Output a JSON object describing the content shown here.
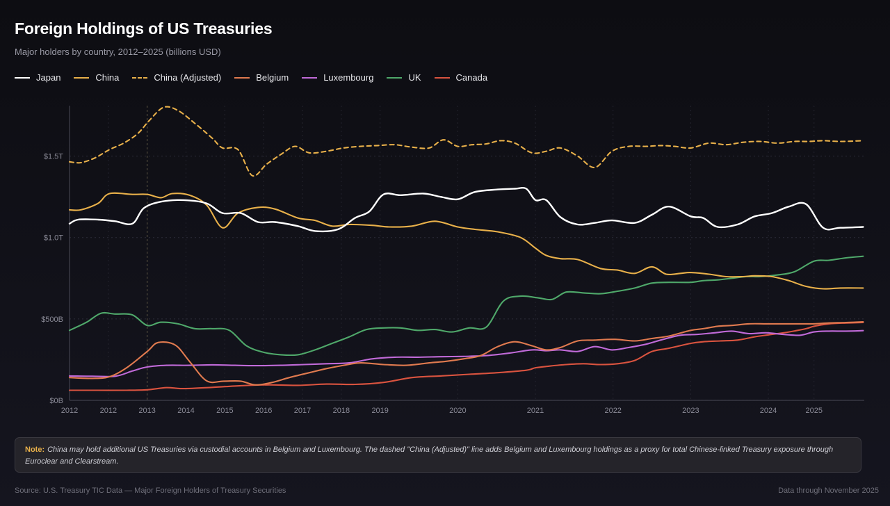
{
  "header": {
    "title": "Foreign Holdings of US Treasuries",
    "subtitle": "Major holders by country, 2012–2025 (billions USD)"
  },
  "note": {
    "label": "Note:",
    "text": "China may hold additional US Treasuries via custodial accounts in Belgium and Luxembourg. The dashed \"China (Adjusted)\" line adds Belgium and Luxembourg holdings as a proxy for total Chinese-linked Treasury exposure through Euroclear and Clearstream."
  },
  "footer": {
    "source": "Source: U.S. Treasury TIC Data — Major Foreign Holders of Treasury Securities",
    "through": "Data through November 2025"
  },
  "chart_data": {
    "type": "line",
    "x_range": [
      2012.0,
      2025.92
    ],
    "ylim": [
      0,
      1810
    ],
    "grid": true,
    "legend_position": "top-left",
    "y_ticks": [
      {
        "value": 0,
        "label": "$0B"
      },
      {
        "value": 500,
        "label": "$500B"
      },
      {
        "value": 1000,
        "label": "$1.0T"
      },
      {
        "value": 1500,
        "label": "$1.5T"
      }
    ],
    "x_ticks": [
      {
        "value": 2012.0,
        "label": "2012"
      },
      {
        "value": 2012.68,
        "label": "2012"
      },
      {
        "value": 2013.36,
        "label": "2013"
      },
      {
        "value": 2014.04,
        "label": "2014"
      },
      {
        "value": 2014.72,
        "label": "2015"
      },
      {
        "value": 2015.4,
        "label": "2016"
      },
      {
        "value": 2016.08,
        "label": "2017"
      },
      {
        "value": 2016.76,
        "label": "2018"
      },
      {
        "value": 2017.44,
        "label": "2019"
      },
      {
        "value": 2018.8,
        "label": "2020"
      },
      {
        "value": 2020.16,
        "label": "2021"
      },
      {
        "value": 2021.52,
        "label": "2022"
      },
      {
        "value": 2022.88,
        "label": "2023"
      },
      {
        "value": 2024.24,
        "label": "2024"
      },
      {
        "value": 2025.04,
        "label": "2025"
      }
    ],
    "vline_x": 2013.36,
    "series": [
      {
        "name": "Japan",
        "color": "#ffffff",
        "dashed": false,
        "x": [
          2012.0,
          2012.15,
          2012.5,
          2012.8,
          2013.1,
          2013.3,
          2013.6,
          2014.0,
          2014.4,
          2014.68,
          2015.0,
          2015.3,
          2015.6,
          2016.0,
          2016.3,
          2016.7,
          2017.0,
          2017.25,
          2017.5,
          2017.8,
          2018.2,
          2018.5,
          2018.8,
          2019.1,
          2019.5,
          2019.8,
          2020.0,
          2020.16,
          2020.35,
          2020.6,
          2020.9,
          2021.2,
          2021.5,
          2021.9,
          2022.2,
          2022.5,
          2022.88,
          2023.1,
          2023.35,
          2023.7,
          2024.0,
          2024.3,
          2024.6,
          2024.9,
          2025.2,
          2025.5,
          2025.9
        ],
        "y": [
          1085,
          1110,
          1110,
          1100,
          1085,
          1180,
          1220,
          1230,
          1210,
          1150,
          1150,
          1095,
          1095,
          1070,
          1040,
          1050,
          1120,
          1160,
          1265,
          1260,
          1270,
          1250,
          1235,
          1280,
          1295,
          1300,
          1300,
          1230,
          1230,
          1125,
          1080,
          1090,
          1105,
          1090,
          1140,
          1190,
          1130,
          1120,
          1065,
          1080,
          1130,
          1150,
          1190,
          1205,
          1060,
          1060,
          1065
        ]
      },
      {
        "name": "China",
        "color": "#e8b04a",
        "dashed": false,
        "x": [
          2012.0,
          2012.2,
          2012.5,
          2012.7,
          2013.1,
          2013.36,
          2013.6,
          2013.8,
          2014.1,
          2014.4,
          2014.68,
          2014.95,
          2015.3,
          2015.6,
          2016.0,
          2016.3,
          2016.6,
          2016.9,
          2017.3,
          2017.6,
          2018.0,
          2018.4,
          2018.8,
          2019.1,
          2019.5,
          2019.9,
          2020.16,
          2020.35,
          2020.6,
          2020.9,
          2021.3,
          2021.6,
          2021.9,
          2022.2,
          2022.45,
          2022.7,
          2022.88,
          2023.2,
          2023.5,
          2023.8,
          2024.0,
          2024.3,
          2024.6,
          2024.9,
          2025.2,
          2025.5,
          2025.9
        ],
        "y": [
          1170,
          1170,
          1210,
          1270,
          1265,
          1265,
          1245,
          1270,
          1260,
          1200,
          1060,
          1150,
          1185,
          1175,
          1120,
          1105,
          1070,
          1080,
          1075,
          1065,
          1070,
          1100,
          1065,
          1050,
          1035,
          1000,
          935,
          890,
          870,
          865,
          810,
          800,
          780,
          820,
          775,
          780,
          785,
          775,
          760,
          760,
          765,
          760,
          735,
          700,
          685,
          690,
          690
        ]
      },
      {
        "name": "China (Adjusted)",
        "color": "#e8b04a",
        "dashed": true,
        "x": [
          2012.0,
          2012.2,
          2012.45,
          2012.7,
          2012.95,
          2013.2,
          2013.4,
          2013.65,
          2013.9,
          2014.2,
          2014.5,
          2014.68,
          2014.95,
          2015.2,
          2015.45,
          2015.7,
          2015.95,
          2016.2,
          2016.5,
          2016.8,
          2017.1,
          2017.4,
          2017.7,
          2018.0,
          2018.3,
          2018.55,
          2018.8,
          2019.05,
          2019.3,
          2019.55,
          2019.8,
          2020.1,
          2020.35,
          2020.6,
          2020.9,
          2021.2,
          2021.5,
          2021.8,
          2022.1,
          2022.35,
          2022.6,
          2022.88,
          2023.2,
          2023.5,
          2023.8,
          2024.1,
          2024.4,
          2024.7,
          2024.95,
          2025.2,
          2025.5,
          2025.9
        ],
        "y": [
          1465,
          1460,
          1490,
          1540,
          1580,
          1640,
          1720,
          1800,
          1780,
          1700,
          1610,
          1550,
          1540,
          1380,
          1450,
          1510,
          1560,
          1520,
          1530,
          1550,
          1560,
          1565,
          1570,
          1555,
          1550,
          1600,
          1560,
          1570,
          1575,
          1595,
          1580,
          1520,
          1530,
          1550,
          1500,
          1430,
          1530,
          1560,
          1560,
          1565,
          1560,
          1550,
          1580,
          1570,
          1585,
          1590,
          1580,
          1590,
          1590,
          1595,
          1590,
          1595
        ]
      },
      {
        "name": "Belgium",
        "color": "#e07a4f",
        "dashed": false,
        "x": [
          2012.0,
          2012.4,
          2012.7,
          2013.0,
          2013.36,
          2013.55,
          2013.85,
          2014.1,
          2014.4,
          2014.7,
          2015.0,
          2015.25,
          2015.55,
          2015.85,
          2016.2,
          2016.5,
          2016.8,
          2017.1,
          2017.5,
          2017.9,
          2018.3,
          2018.6,
          2018.9,
          2019.2,
          2019.5,
          2019.8,
          2020.1,
          2020.35,
          2020.6,
          2020.9,
          2021.2,
          2021.55,
          2021.9,
          2022.2,
          2022.5,
          2022.88,
          2023.1,
          2023.35,
          2023.6,
          2023.9,
          2024.2,
          2024.5,
          2024.8,
          2025.04,
          2025.3,
          2025.6,
          2025.9
        ],
        "y": [
          140,
          135,
          145,
          200,
          300,
          355,
          340,
          240,
          120,
          118,
          118,
          95,
          110,
          140,
          170,
          195,
          215,
          230,
          220,
          215,
          230,
          240,
          255,
          275,
          330,
          360,
          335,
          310,
          325,
          365,
          370,
          375,
          365,
          380,
          395,
          430,
          440,
          455,
          460,
          470,
          470,
          470,
          470,
          470,
          475,
          478,
          482
        ]
      },
      {
        "name": "Luxembourg",
        "color": "#c06ad8",
        "dashed": false,
        "x": [
          2012.0,
          2012.4,
          2012.8,
          2013.1,
          2013.36,
          2013.7,
          2014.1,
          2014.5,
          2014.9,
          2015.3,
          2015.7,
          2016.1,
          2016.5,
          2016.9,
          2017.3,
          2017.7,
          2018.1,
          2018.5,
          2018.9,
          2019.3,
          2019.7,
          2020.1,
          2020.35,
          2020.6,
          2020.9,
          2021.2,
          2021.5,
          2021.8,
          2022.1,
          2022.4,
          2022.7,
          2023.0,
          2023.3,
          2023.6,
          2023.9,
          2024.2,
          2024.5,
          2024.8,
          2025.04,
          2025.3,
          2025.6,
          2025.9
        ],
        "y": [
          150,
          148,
          148,
          180,
          205,
          215,
          215,
          218,
          215,
          213,
          215,
          220,
          225,
          230,
          255,
          265,
          265,
          268,
          270,
          275,
          290,
          310,
          305,
          310,
          300,
          330,
          310,
          325,
          345,
          375,
          400,
          405,
          415,
          425,
          410,
          415,
          405,
          400,
          420,
          425,
          425,
          428
        ]
      },
      {
        "name": "UK",
        "color": "#4fa86a",
        "dashed": false,
        "x": [
          2012.0,
          2012.3,
          2012.55,
          2012.8,
          2013.1,
          2013.36,
          2013.6,
          2013.9,
          2014.2,
          2014.5,
          2014.8,
          2015.1,
          2015.4,
          2015.7,
          2016.0,
          2016.3,
          2016.6,
          2016.9,
          2017.2,
          2017.5,
          2017.8,
          2018.1,
          2018.4,
          2018.7,
          2019.0,
          2019.3,
          2019.6,
          2019.9,
          2020.2,
          2020.45,
          2020.7,
          2021.0,
          2021.3,
          2021.6,
          2021.9,
          2022.2,
          2022.5,
          2022.88,
          2023.1,
          2023.35,
          2023.6,
          2023.85,
          2024.1,
          2024.4,
          2024.7,
          2025.04,
          2025.3,
          2025.6,
          2025.9
        ],
        "y": [
          430,
          480,
          535,
          530,
          525,
          460,
          480,
          470,
          440,
          440,
          430,
          335,
          295,
          280,
          280,
          310,
          350,
          390,
          435,
          445,
          445,
          430,
          435,
          420,
          445,
          450,
          610,
          640,
          630,
          620,
          665,
          660,
          655,
          670,
          690,
          720,
          725,
          725,
          735,
          740,
          750,
          760,
          760,
          770,
          790,
          855,
          860,
          875,
          885
        ]
      },
      {
        "name": "Canada",
        "color": "#d9533f",
        "dashed": false,
        "x": [
          2012.0,
          2012.5,
          2013.0,
          2013.36,
          2013.7,
          2014.0,
          2014.5,
          2015.0,
          2015.5,
          2016.0,
          2016.5,
          2017.0,
          2017.5,
          2018.0,
          2018.5,
          2019.0,
          2019.5,
          2020.0,
          2020.16,
          2020.4,
          2020.7,
          2021.0,
          2021.3,
          2021.6,
          2021.9,
          2022.2,
          2022.5,
          2022.88,
          2023.1,
          2023.4,
          2023.7,
          2024.0,
          2024.3,
          2024.6,
          2024.9,
          2025.04,
          2025.3,
          2025.6,
          2025.9
        ],
        "y": [
          62,
          62,
          62,
          65,
          78,
          72,
          80,
          90,
          95,
          92,
          100,
          98,
          110,
          140,
          150,
          160,
          170,
          185,
          200,
          210,
          220,
          225,
          220,
          225,
          245,
          300,
          320,
          350,
          360,
          365,
          370,
          390,
          405,
          420,
          440,
          455,
          470,
          475,
          478
        ]
      }
    ]
  }
}
